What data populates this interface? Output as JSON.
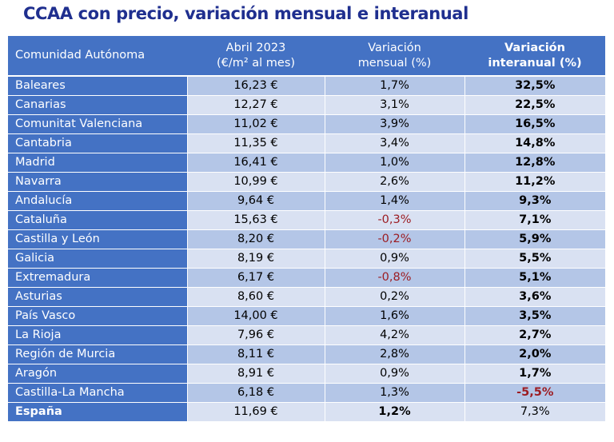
{
  "title": "CCAA con precio, variación mensual e interanual",
  "colors": {
    "header_bg": "#4472c4",
    "row_dark": "#b4c6e7",
    "row_light": "#d9e1f2",
    "title": "#1f2f8f",
    "negative": "#9c1c22"
  },
  "table": {
    "headers": {
      "region": "Comunidad Autónoma",
      "price_line1": "Abril 2023",
      "price_line2": "(€/m² al mes)",
      "monthly_line1": "Variación",
      "monthly_line2": "mensual (%)",
      "yearly_line1": "Variación",
      "yearly_line2": "interanual (%)"
    },
    "rows": [
      {
        "region": "Baleares",
        "price": "16,23 €",
        "monthly": "1,7%",
        "yearly": "32,5%"
      },
      {
        "region": "Canarias",
        "price": "12,27 €",
        "monthly": "3,1%",
        "yearly": "22,5%"
      },
      {
        "region": "Comunitat Valenciana",
        "price": "11,02 €",
        "monthly": "3,9%",
        "yearly": "16,5%"
      },
      {
        "region": "Cantabria",
        "price": "11,35 €",
        "monthly": "3,4%",
        "yearly": "14,8%"
      },
      {
        "region": "Madrid",
        "price": "16,41 €",
        "monthly": "1,0%",
        "yearly": "12,8%"
      },
      {
        "region": "Navarra",
        "price": "10,99 €",
        "monthly": "2,6%",
        "yearly": "11,2%"
      },
      {
        "region": "Andalucía",
        "price": "9,64 €",
        "monthly": "1,4%",
        "yearly": "9,3%"
      },
      {
        "region": "Cataluña",
        "price": "15,63 €",
        "monthly": "-0,3%",
        "yearly": "7,1%"
      },
      {
        "region": "Castilla y León",
        "price": "8,20 €",
        "monthly": "-0,2%",
        "yearly": "5,9%"
      },
      {
        "region": "Galicia",
        "price": "8,19 €",
        "monthly": "0,9%",
        "yearly": "5,5%"
      },
      {
        "region": "Extremadura",
        "price": "6,17 €",
        "monthly": "-0,8%",
        "yearly": "5,1%"
      },
      {
        "region": "Asturias",
        "price": "8,60 €",
        "monthly": "0,2%",
        "yearly": "3,6%"
      },
      {
        "region": "País Vasco",
        "price": "14,00 €",
        "monthly": "1,6%",
        "yearly": "3,5%"
      },
      {
        "region": "La Rioja",
        "price": "7,96 €",
        "monthly": "4,2%",
        "yearly": "2,7%"
      },
      {
        "region": "Región de Murcia",
        "price": "8,11 €",
        "monthly": "2,8%",
        "yearly": "2,0%"
      },
      {
        "region": "Aragón",
        "price": "8,91 €",
        "monthly": "0,9%",
        "yearly": "1,7%"
      },
      {
        "region": "Castilla-La Mancha",
        "price": "6,18 €",
        "monthly": "1,3%",
        "yearly": "-5,5%"
      }
    ],
    "total": {
      "region": "España",
      "price": "11,69 €",
      "monthly": "1,2%",
      "yearly": "7,3%"
    }
  }
}
